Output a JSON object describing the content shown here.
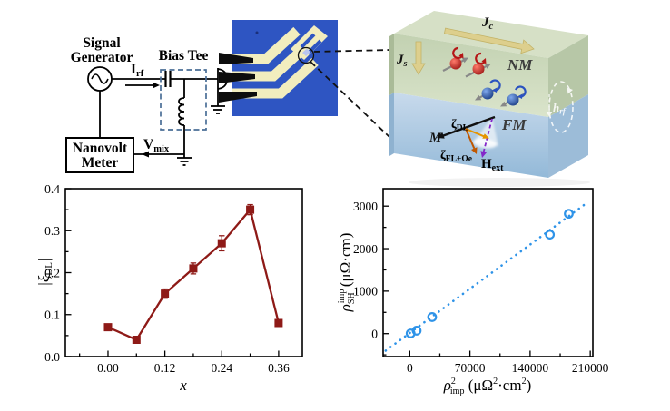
{
  "circuit": {
    "signal_generator": [
      "Signal",
      "Generator"
    ],
    "bias_tee_label": "Bias Tee",
    "nanovolt_meter": [
      "Nanovolt",
      "Meter"
    ],
    "irf": {
      "main": "I",
      "sub": "rf"
    },
    "vmix": {
      "main": "V",
      "sub": "mix"
    },
    "colors": {
      "wire": "#000000",
      "bias_tee_box": "#4a6e96",
      "device_bg": "#2e55c2",
      "device_trace": "#f2edbe",
      "probes": "#0d0d0d"
    }
  },
  "schematic": {
    "jc": {
      "main": "J",
      "sub": "c"
    },
    "js": {
      "main": "J",
      "sub": "s"
    },
    "nm_label": "NM",
    "fm_label": "FM",
    "hrf": {
      "main": "h",
      "sub": "rf"
    },
    "m_label": "M",
    "zeta_dl": {
      "main": "ζ",
      "sub": "DL"
    },
    "zeta_fl": {
      "main": "ζ",
      "sub": "FL+Oe"
    },
    "hext": {
      "main": "H",
      "sub": "ext"
    },
    "colors": {
      "nm_layer": "#c8d6b8",
      "fm_layer": "#aecbe3",
      "current_arrows": "#ddcf8d",
      "spin_up_sphere": "#c01818",
      "spin_down_sphere": "#1f3f9e",
      "zeta_dl": "#e59400",
      "zeta_fl_oe": "#bf5700",
      "h_ext": "#8326c9",
      "h_rf": "#ffffff"
    }
  },
  "chart_data": [
    {
      "type": "line",
      "panel": "bottom-left",
      "xlabel": "x",
      "ylabel": "|ξDL|",
      "ylabel_parts": {
        "pre": "|ξ",
        "sub": "DL",
        "post": "|"
      },
      "x": [
        0.0,
        0.06,
        0.12,
        0.18,
        0.24,
        0.3,
        0.36
      ],
      "y": [
        0.07,
        0.04,
        0.15,
        0.21,
        0.27,
        0.35,
        0.08
      ],
      "yerr": [
        0.005,
        0.005,
        0.011,
        0.013,
        0.018,
        0.012,
        0.005
      ],
      "xlim": [
        -0.09,
        0.41
      ],
      "ylim": [
        0,
        0.4
      ],
      "xticks": [
        0,
        0.12,
        0.24,
        0.36
      ],
      "xtick_labels": [
        "0.00",
        "0.12",
        "0.24",
        "0.36"
      ],
      "xminor": [
        -0.06,
        0.06,
        0.18,
        0.3
      ],
      "yticks": [
        0,
        0.1,
        0.2,
        0.3,
        0.4
      ],
      "ytick_labels": [
        "0.0",
        "0.1",
        "0.2",
        "0.3",
        "0.4"
      ],
      "yminor": [
        0.05,
        0.15,
        0.25,
        0.35
      ],
      "marker": "square",
      "connect": true,
      "color": "#8e1a17",
      "grid": false
    },
    {
      "type": "scatter",
      "panel": "bottom-right",
      "xlabel": "ρ2imp (μΩ2·cm2)",
      "xlabel_parts": {
        "sym": "ρ",
        "sup": "2",
        "sub": "imp",
        "r1": " (μΩ",
        "s1": "2",
        "r2": "·cm",
        "s2": "2",
        "r3": ")"
      },
      "ylabel": "ρimpSH (μΩ·cm)",
      "ylabel_parts": {
        "sym": "ρ",
        "sup": "imp",
        "sub": "SH",
        "rest": " (μΩ·cm)"
      },
      "x": [
        1000,
        8000,
        26000,
        163000,
        185000
      ],
      "y": [
        5,
        70,
        390,
        2330,
        2820
      ],
      "fit_line": {
        "x1": -28000,
        "y1": -400,
        "x2": 207000,
        "y2": 3090
      },
      "xlim": [
        -31000,
        213000
      ],
      "ylim": [
        -540,
        3410
      ],
      "xticks": [
        0,
        70000,
        140000,
        210000
      ],
      "xtick_labels": [
        "0",
        "70000",
        "140000",
        "210000"
      ],
      "xminor": [
        35000,
        105000,
        175000
      ],
      "yticks": [
        0,
        1000,
        2000,
        3000
      ],
      "ytick_labels": [
        "0",
        "1000",
        "2000",
        "3000"
      ],
      "yminor": [
        -500,
        500,
        1500,
        2500
      ],
      "marker": "circle",
      "connect": false,
      "color": "#2e93e8",
      "grid": false
    }
  ]
}
